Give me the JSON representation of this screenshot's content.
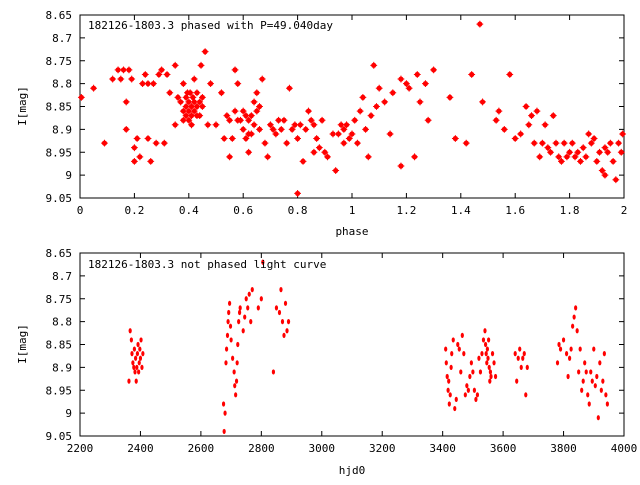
{
  "chart_data": [
    {
      "type": "scatter",
      "title": "182126-1803.3 phased with P=49.040day",
      "xlabel": "phase",
      "ylabel": "I[mag]",
      "xlim": [
        0,
        2
      ],
      "ylim": [
        9.05,
        8.65
      ],
      "y_inverted": true,
      "grid": false,
      "marker_color": "#ff0000",
      "x_ticks": [
        "0",
        "0.2",
        "0.4",
        "0.6",
        "0.8",
        "1",
        "1.2",
        "1.4",
        "1.6",
        "1.8",
        "2"
      ],
      "x_tick_values": [
        0,
        0.2,
        0.4,
        0.6,
        0.8,
        1.0,
        1.2,
        1.4,
        1.6,
        1.8,
        2.0
      ],
      "y_ticks": [
        "8.65",
        "8.7",
        "8.75",
        "8.8",
        "8.85",
        "8.9",
        "8.95",
        "9",
        "9.05"
      ],
      "y_tick_values": [
        8.65,
        8.7,
        8.75,
        8.8,
        8.85,
        8.9,
        8.95,
        9.0,
        9.05
      ],
      "points": [
        [
          0.005,
          8.83
        ],
        [
          0.05,
          8.81
        ],
        [
          0.09,
          8.93
        ],
        [
          0.12,
          8.79
        ],
        [
          0.14,
          8.77
        ],
        [
          0.15,
          8.79
        ],
        [
          0.16,
          8.77
        ],
        [
          0.17,
          8.84
        ],
        [
          0.17,
          8.9
        ],
        [
          0.18,
          8.77
        ],
        [
          0.19,
          8.79
        ],
        [
          0.2,
          8.94
        ],
        [
          0.2,
          8.97
        ],
        [
          0.21,
          8.92
        ],
        [
          0.22,
          8.96
        ],
        [
          0.23,
          8.8
        ],
        [
          0.24,
          8.78
        ],
        [
          0.25,
          8.8
        ],
        [
          0.25,
          8.92
        ],
        [
          0.26,
          8.97
        ],
        [
          0.27,
          8.8
        ],
        [
          0.28,
          8.93
        ],
        [
          0.29,
          8.78
        ],
        [
          0.3,
          8.77
        ],
        [
          0.31,
          8.93
        ],
        [
          0.32,
          8.78
        ],
        [
          0.33,
          8.82
        ],
        [
          0.35,
          8.76
        ],
        [
          0.35,
          8.89
        ],
        [
          0.36,
          8.83
        ],
        [
          0.37,
          8.84
        ],
        [
          0.38,
          8.8
        ],
        [
          0.38,
          8.86
        ],
        [
          0.38,
          8.88
        ],
        [
          0.39,
          8.83
        ],
        [
          0.39,
          8.85
        ],
        [
          0.39,
          8.87
        ],
        [
          0.395,
          8.82
        ],
        [
          0.4,
          8.84
        ],
        [
          0.4,
          8.86
        ],
        [
          0.4,
          8.88
        ],
        [
          0.405,
          8.82
        ],
        [
          0.41,
          8.85
        ],
        [
          0.41,
          8.87
        ],
        [
          0.41,
          8.89
        ],
        [
          0.415,
          8.83
        ],
        [
          0.42,
          8.79
        ],
        [
          0.42,
          8.84
        ],
        [
          0.42,
          8.86
        ],
        [
          0.43,
          8.82
        ],
        [
          0.43,
          8.85
        ],
        [
          0.43,
          8.87
        ],
        [
          0.44,
          8.84
        ],
        [
          0.44,
          8.87
        ],
        [
          0.445,
          8.76
        ],
        [
          0.45,
          8.83
        ],
        [
          0.45,
          8.85
        ],
        [
          0.46,
          8.73
        ],
        [
          0.47,
          8.89
        ],
        [
          0.48,
          8.8
        ],
        [
          0.5,
          8.89
        ],
        [
          0.52,
          8.82
        ],
        [
          0.53,
          8.92
        ],
        [
          0.54,
          8.87
        ],
        [
          0.55,
          8.96
        ],
        [
          0.55,
          8.88
        ],
        [
          0.56,
          8.92
        ],
        [
          0.57,
          8.86
        ],
        [
          0.57,
          8.77
        ],
        [
          0.58,
          8.88
        ],
        [
          0.58,
          8.8
        ],
        [
          0.59,
          8.88
        ],
        [
          0.6,
          8.86
        ],
        [
          0.6,
          8.9
        ],
        [
          0.61,
          8.92
        ],
        [
          0.61,
          8.87
        ],
        [
          0.62,
          8.88
        ],
        [
          0.62,
          8.91
        ],
        [
          0.62,
          8.95
        ],
        [
          0.63,
          8.87
        ],
        [
          0.63,
          8.91
        ],
        [
          0.64,
          8.84
        ],
        [
          0.64,
          8.89
        ],
        [
          0.65,
          8.82
        ],
        [
          0.65,
          8.86
        ],
        [
          0.66,
          8.9
        ],
        [
          0.66,
          8.85
        ],
        [
          0.67,
          8.79
        ],
        [
          0.68,
          8.93
        ],
        [
          0.69,
          8.96
        ],
        [
          0.7,
          8.89
        ],
        [
          0.71,
          8.9
        ],
        [
          0.72,
          8.91
        ],
        [
          0.73,
          8.88
        ],
        [
          0.74,
          8.9
        ],
        [
          0.75,
          8.88
        ],
        [
          0.76,
          8.93
        ],
        [
          0.77,
          8.81
        ],
        [
          0.78,
          8.9
        ],
        [
          0.79,
          8.89
        ],
        [
          0.8,
          8.92
        ],
        [
          0.8,
          9.04
        ],
        [
          0.81,
          8.89
        ],
        [
          0.82,
          8.97
        ],
        [
          0.83,
          8.9
        ],
        [
          0.84,
          8.86
        ],
        [
          0.85,
          8.88
        ],
        [
          0.86,
          8.95
        ],
        [
          0.86,
          8.89
        ],
        [
          0.87,
          8.92
        ],
        [
          0.88,
          8.94
        ],
        [
          0.89,
          8.88
        ],
        [
          0.9,
          8.95
        ],
        [
          0.91,
          8.96
        ],
        [
          0.93,
          8.91
        ],
        [
          0.94,
          8.99
        ],
        [
          0.95,
          8.91
        ],
        [
          0.96,
          8.89
        ],
        [
          0.97,
          8.93
        ],
        [
          0.97,
          8.9
        ],
        [
          0.98,
          8.89
        ],
        [
          0.99,
          8.92
        ],
        [
          1.0,
          8.91
        ],
        [
          1.01,
          8.88
        ],
        [
          1.02,
          8.93
        ],
        [
          1.03,
          8.86
        ],
        [
          1.04,
          8.83
        ],
        [
          1.05,
          8.9
        ],
        [
          1.06,
          8.96
        ],
        [
          1.07,
          8.87
        ],
        [
          1.08,
          8.76
        ],
        [
          1.09,
          8.85
        ],
        [
          1.1,
          8.81
        ],
        [
          1.12,
          8.84
        ],
        [
          1.14,
          8.91
        ],
        [
          1.15,
          8.82
        ],
        [
          1.18,
          8.98
        ],
        [
          1.18,
          8.79
        ],
        [
          1.2,
          8.8
        ],
        [
          1.21,
          8.81
        ],
        [
          1.23,
          8.96
        ],
        [
          1.24,
          8.78
        ],
        [
          1.25,
          8.84
        ],
        [
          1.27,
          8.8
        ],
        [
          1.28,
          8.88
        ],
        [
          1.3,
          8.77
        ],
        [
          1.36,
          8.83
        ],
        [
          1.38,
          8.92
        ],
        [
          1.42,
          8.93
        ],
        [
          1.44,
          8.78
        ],
        [
          1.47,
          8.67
        ],
        [
          1.48,
          8.84
        ],
        [
          1.53,
          8.88
        ],
        [
          1.54,
          8.86
        ],
        [
          1.56,
          8.9
        ],
        [
          1.58,
          8.78
        ],
        [
          1.6,
          8.92
        ],
        [
          1.62,
          8.91
        ],
        [
          1.64,
          8.85
        ],
        [
          1.65,
          8.89
        ],
        [
          1.66,
          8.87
        ],
        [
          1.67,
          8.93
        ],
        [
          1.68,
          8.86
        ],
        [
          1.69,
          8.96
        ],
        [
          1.7,
          8.93
        ],
        [
          1.71,
          8.89
        ],
        [
          1.72,
          8.94
        ],
        [
          1.73,
          8.95
        ],
        [
          1.74,
          8.87
        ],
        [
          1.75,
          8.93
        ],
        [
          1.76,
          8.96
        ],
        [
          1.77,
          8.97
        ],
        [
          1.78,
          8.93
        ],
        [
          1.79,
          8.96
        ],
        [
          1.8,
          8.95
        ],
        [
          1.81,
          8.93
        ],
        [
          1.82,
          8.96
        ],
        [
          1.83,
          8.95
        ],
        [
          1.84,
          8.97
        ],
        [
          1.85,
          8.94
        ],
        [
          1.86,
          8.96
        ],
        [
          1.87,
          8.91
        ],
        [
          1.88,
          8.93
        ],
        [
          1.89,
          8.92
        ],
        [
          1.9,
          8.97
        ],
        [
          1.91,
          8.95
        ],
        [
          1.92,
          8.99
        ],
        [
          1.93,
          8.94
        ],
        [
          1.93,
          9.0
        ],
        [
          1.94,
          8.95
        ],
        [
          1.95,
          8.93
        ],
        [
          1.96,
          8.97
        ],
        [
          1.97,
          9.01
        ],
        [
          1.98,
          8.93
        ],
        [
          1.99,
          8.95
        ],
        [
          1.995,
          8.91
        ]
      ]
    },
    {
      "type": "scatter",
      "title": "182126-1803.3 not phased light curve",
      "xlabel": "hjd0",
      "ylabel": "I[mag]",
      "xlim": [
        2200,
        4000
      ],
      "ylim": [
        9.05,
        8.65
      ],
      "y_inverted": true,
      "grid": false,
      "marker_color": "#ff0000",
      "x_ticks": [
        "2200",
        "2400",
        "2600",
        "2800",
        "3000",
        "3200",
        "3400",
        "3600",
        "3800",
        "4000"
      ],
      "x_tick_values": [
        2200,
        2400,
        2600,
        2800,
        3000,
        3200,
        3400,
        3600,
        3800,
        4000
      ],
      "y_ticks": [
        "8.65",
        "8.7",
        "8.75",
        "8.8",
        "8.85",
        "8.9",
        "8.95",
        "9",
        "9.05"
      ],
      "y_tick_values": [
        8.65,
        8.7,
        8.75,
        8.8,
        8.85,
        8.9,
        8.95,
        9.0,
        9.05
      ],
      "points": [
        [
          2362,
          8.93
        ],
        [
          2366,
          8.82
        ],
        [
          2370,
          8.84
        ],
        [
          2372,
          8.87
        ],
        [
          2375,
          8.89
        ],
        [
          2378,
          8.9
        ],
        [
          2380,
          8.86
        ],
        [
          2382,
          8.91
        ],
        [
          2384,
          8.88
        ],
        [
          2386,
          8.93
        ],
        [
          2388,
          8.9
        ],
        [
          2390,
          8.87
        ],
        [
          2392,
          8.85
        ],
        [
          2394,
          8.91
        ],
        [
          2396,
          8.89
        ],
        [
          2398,
          8.86
        ],
        [
          2400,
          8.88
        ],
        [
          2402,
          8.84
        ],
        [
          2405,
          8.9
        ],
        [
          2408,
          8.87
        ],
        [
          2675,
          8.98
        ],
        [
          2677,
          9.04
        ],
        [
          2680,
          9.0
        ],
        [
          2683,
          8.89
        ],
        [
          2685,
          8.86
        ],
        [
          2688,
          8.83
        ],
        [
          2690,
          8.8
        ],
        [
          2692,
          8.78
        ],
        [
          2695,
          8.76
        ],
        [
          2698,
          8.81
        ],
        [
          2700,
          8.84
        ],
        [
          2705,
          8.88
        ],
        [
          2710,
          8.91
        ],
        [
          2712,
          8.94
        ],
        [
          2715,
          8.96
        ],
        [
          2718,
          8.93
        ],
        [
          2720,
          8.89
        ],
        [
          2722,
          8.85
        ],
        [
          2725,
          8.8
        ],
        [
          2728,
          8.78
        ],
        [
          2730,
          8.77
        ],
        [
          2740,
          8.82
        ],
        [
          2745,
          8.79
        ],
        [
          2750,
          8.75
        ],
        [
          2755,
          8.77
        ],
        [
          2760,
          8.74
        ],
        [
          2765,
          8.8
        ],
        [
          2770,
          8.73
        ],
        [
          2790,
          8.77
        ],
        [
          2800,
          8.75
        ],
        [
          2805,
          8.67
        ],
        [
          2840,
          8.91
        ],
        [
          2850,
          8.77
        ],
        [
          2860,
          8.78
        ],
        [
          2865,
          8.73
        ],
        [
          2870,
          8.8
        ],
        [
          2875,
          8.83
        ],
        [
          2880,
          8.76
        ],
        [
          2885,
          8.82
        ],
        [
          2890,
          8.8
        ],
        [
          3410,
          8.86
        ],
        [
          3412,
          8.89
        ],
        [
          3415,
          8.92
        ],
        [
          3418,
          8.95
        ],
        [
          3420,
          8.93
        ],
        [
          3422,
          8.98
        ],
        [
          3425,
          8.96
        ],
        [
          3428,
          8.9
        ],
        [
          3430,
          8.87
        ],
        [
          3435,
          8.84
        ],
        [
          3440,
          8.99
        ],
        [
          3445,
          8.97
        ],
        [
          3450,
          8.85
        ],
        [
          3455,
          8.86
        ],
        [
          3460,
          8.91
        ],
        [
          3465,
          8.83
        ],
        [
          3470,
          8.87
        ],
        [
          3475,
          8.96
        ],
        [
          3480,
          8.94
        ],
        [
          3485,
          8.95
        ],
        [
          3490,
          8.92
        ],
        [
          3495,
          8.89
        ],
        [
          3500,
          8.91
        ],
        [
          3505,
          8.95
        ],
        [
          3510,
          8.97
        ],
        [
          3515,
          8.96
        ],
        [
          3520,
          8.88
        ],
        [
          3525,
          8.91
        ],
        [
          3530,
          8.87
        ],
        [
          3535,
          8.84
        ],
        [
          3540,
          8.82
        ],
        [
          3542,
          8.85
        ],
        [
          3544,
          8.87
        ],
        [
          3546,
          8.89
        ],
        [
          3548,
          8.86
        ],
        [
          3550,
          8.88
        ],
        [
          3552,
          8.84
        ],
        [
          3554,
          8.9
        ],
        [
          3556,
          8.93
        ],
        [
          3558,
          8.91
        ],
        [
          3560,
          8.92
        ],
        [
          3565,
          8.87
        ],
        [
          3570,
          8.89
        ],
        [
          3575,
          8.92
        ],
        [
          3640,
          8.87
        ],
        [
          3645,
          8.93
        ],
        [
          3650,
          8.88
        ],
        [
          3655,
          8.86
        ],
        [
          3660,
          8.9
        ],
        [
          3665,
          8.88
        ],
        [
          3670,
          8.87
        ],
        [
          3675,
          8.96
        ],
        [
          3680,
          8.9
        ],
        [
          3780,
          8.89
        ],
        [
          3785,
          8.85
        ],
        [
          3790,
          8.86
        ],
        [
          3800,
          8.84
        ],
        [
          3810,
          8.87
        ],
        [
          3815,
          8.92
        ],
        [
          3820,
          8.88
        ],
        [
          3825,
          8.86
        ],
        [
          3830,
          8.81
        ],
        [
          3835,
          8.79
        ],
        [
          3840,
          8.77
        ],
        [
          3845,
          8.82
        ],
        [
          3850,
          8.91
        ],
        [
          3855,
          8.86
        ],
        [
          3860,
          8.95
        ],
        [
          3865,
          8.93
        ],
        [
          3870,
          8.89
        ],
        [
          3875,
          8.91
        ],
        [
          3880,
          8.96
        ],
        [
          3885,
          8.98
        ],
        [
          3890,
          8.91
        ],
        [
          3895,
          8.93
        ],
        [
          3900,
          8.86
        ],
        [
          3905,
          8.94
        ],
        [
          3910,
          8.92
        ],
        [
          3915,
          9.01
        ],
        [
          3920,
          8.89
        ],
        [
          3925,
          8.95
        ],
        [
          3930,
          8.93
        ],
        [
          3935,
          8.87
        ],
        [
          3940,
          8.96
        ],
        [
          3945,
          8.98
        ]
      ]
    }
  ]
}
